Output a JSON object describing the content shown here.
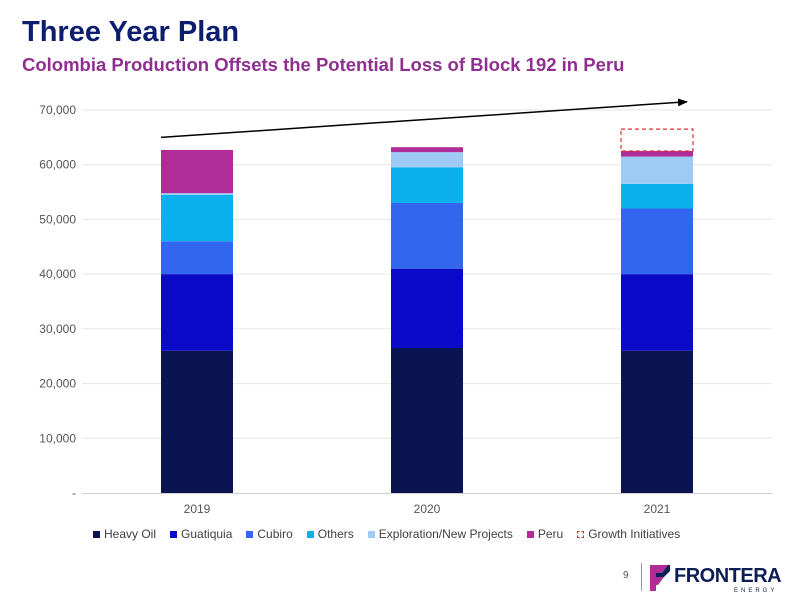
{
  "slide": {
    "title": "Three Year Plan",
    "subtitle": "Colombia Production Offsets the Potential Loss of Block 192 in Peru",
    "page_number": "9"
  },
  "logo": {
    "name": "FRONTERA",
    "sub": "ENERGY"
  },
  "chart_data": {
    "type": "bar",
    "stacked": true,
    "categories": [
      "2019",
      "2020",
      "2021"
    ],
    "ylim": [
      0,
      70000
    ],
    "yticks": [
      0,
      10000,
      20000,
      30000,
      40000,
      50000,
      60000,
      70000
    ],
    "ytick_labels": [
      "-",
      "10,000",
      "20,000",
      "30,000",
      "40,000",
      "50,000",
      "60,000",
      "70,000"
    ],
    "grid": true,
    "legend_position": "bottom",
    "series": [
      {
        "name": "Heavy Oil",
        "color": "#0a1450",
        "values": [
          26000,
          26500,
          26000
        ]
      },
      {
        "name": "Guatiquia",
        "color": "#0a0ac8",
        "values": [
          14000,
          14500,
          14000
        ]
      },
      {
        "name": "Cubiro",
        "color": "#3366ee",
        "values": [
          6000,
          12000,
          12000
        ]
      },
      {
        "name": "Others",
        "color": "#0bb0ee",
        "values": [
          8500,
          6500,
          4500
        ]
      },
      {
        "name": "Exploration/New Projects",
        "color": "#9dcbf5",
        "values": [
          300,
          2800,
          5000
        ]
      },
      {
        "name": "Peru",
        "color": "#b02c96",
        "values": [
          7900,
          900,
          1000
        ]
      },
      {
        "name": "Growth Initiatives",
        "color": "#e03030",
        "dashed": true,
        "values": [
          0,
          0,
          4000
        ]
      }
    ],
    "trend_arrow": {
      "from": {
        "category": "2019",
        "value": 65000
      },
      "to": {
        "category": "2021",
        "value": 71500
      }
    }
  }
}
